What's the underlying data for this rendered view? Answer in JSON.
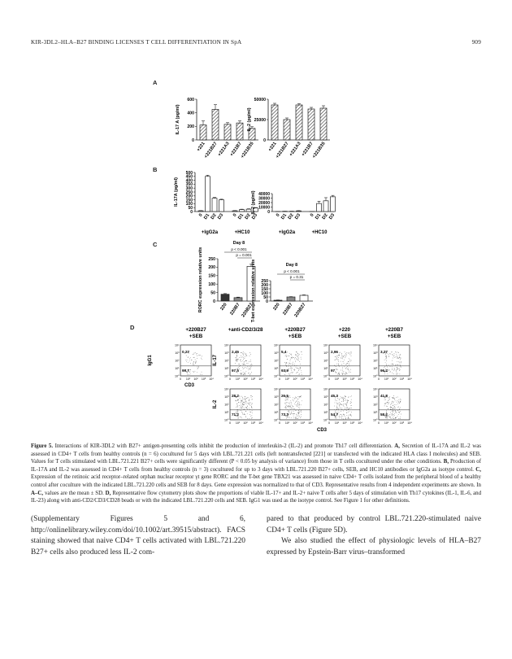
{
  "header": {
    "running_title": "KIR-3DL2–HLA–B27 BINDING LICENSES T CELL DIFFERENTIATION IN SpA",
    "page_number": "909"
  },
  "panels": {
    "A": "A",
    "B": "B",
    "C": "C",
    "D": "D"
  },
  "chart_data": [
    {
      "panel": "A",
      "type": "bar",
      "ylabel": "IL-17 A (pg/ml)",
      "yticks": [
        "0",
        "200",
        "400",
        "600"
      ],
      "ylim": [
        0,
        600
      ],
      "categories": [
        "+221",
        "+221B27",
        "+221A3",
        "+221B7",
        "+221B35"
      ],
      "values": [
        220,
        450,
        230,
        250,
        170
      ],
      "errors": [
        60,
        70,
        25,
        30,
        25
      ],
      "style": "hatched"
    },
    {
      "panel": "A",
      "type": "bar",
      "ylabel": "IL-2 (pg/ml)",
      "yticks": [
        "0",
        "25000",
        "50000"
      ],
      "ylim": [
        0,
        50000
      ],
      "categories": [
        "+221",
        "+221B27",
        "+221A3",
        "+221B7",
        "+221B35"
      ],
      "values": [
        43000,
        25000,
        43000,
        38000,
        39000
      ],
      "errors": [
        2000,
        2000,
        1500,
        2000,
        3000
      ],
      "style": "hatched"
    },
    {
      "panel": "B",
      "type": "bar",
      "ylabel": "IL-17A (pg/ml)",
      "yticks": [
        "0",
        "50",
        "100",
        "150",
        "200",
        "250",
        "300",
        "350",
        "400",
        "450",
        "500"
      ],
      "ylim": [
        0,
        500
      ],
      "categories": [
        "0",
        "D1",
        "D2",
        "D3",
        "0",
        "D1",
        "D2",
        "D3"
      ],
      "groups": [
        "+IgG2a",
        "+HC10"
      ],
      "values": [
        10,
        450,
        170,
        150,
        10,
        25,
        30,
        45
      ],
      "errors": [
        3,
        15,
        10,
        8,
        3,
        5,
        5,
        6
      ]
    },
    {
      "panel": "B",
      "type": "bar",
      "ylabel": "IL-2 (pg/ml)",
      "yticks": [
        "0",
        "10000",
        "20000",
        "30000",
        "40000"
      ],
      "ylim": [
        0,
        40000
      ],
      "categories": [
        "0",
        "D1",
        "D2",
        "D3",
        "0",
        "D1",
        "D2",
        "D3"
      ],
      "groups": [
        "+IgG2a",
        "+HC10"
      ],
      "values": [
        200,
        500,
        500,
        1500,
        200,
        18000,
        24000,
        33000
      ],
      "errors": [
        100,
        200,
        200,
        500,
        100,
        5000,
        7000,
        3000
      ]
    },
    {
      "panel": "C",
      "type": "bar",
      "title": "Day 8",
      "ylabel": "RORC expression relative units",
      "yticks": [
        "0",
        "50",
        "100",
        "150",
        "200",
        "250"
      ],
      "ylim": [
        0,
        250
      ],
      "categories": [
        "220",
        "220B7",
        "220B27"
      ],
      "values": [
        40,
        20,
        205
      ],
      "errors": [
        4,
        3,
        12
      ],
      "fills": [
        "#333333",
        "#888888",
        "#ffffff"
      ],
      "annotations": [
        "p < 0.001",
        "p = 0.001"
      ]
    },
    {
      "panel": "C",
      "type": "bar",
      "title": "Day 8",
      "ylabel": "T-bet expression relative units",
      "yticks": [
        "0",
        "50",
        "100",
        "150",
        "200",
        "250"
      ],
      "ylim": [
        0,
        250
      ],
      "categories": [
        "220",
        "220B7",
        "220B27"
      ],
      "values": [
        10,
        50,
        70
      ],
      "errors": [
        3,
        4,
        6
      ],
      "fills": [
        "#333333",
        "#888888",
        "#ffffff"
      ],
      "annotations": [
        "p < 0.001",
        "p = 0.31"
      ]
    }
  ],
  "flow": {
    "columns": [
      "+220B27\n+SEB",
      "+anti-CD2/3/28",
      "+220B27\n+SEB",
      "+220\n+SEB",
      "+220B7\n+SEB"
    ],
    "row_labels": [
      "IL-17",
      "IL-2"
    ],
    "isotype_label": "IgG1",
    "x_axis_label": "CD3",
    "bottom_label": "CD3",
    "yticks": [
      "10⁰",
      "10¹",
      "10²",
      "10³",
      "10⁴"
    ],
    "xticks": [
      "0",
      "10¹",
      "10²",
      "10³",
      "10⁴"
    ],
    "isotype_values": [
      "0,27",
      "99,7"
    ],
    "il17_values": [
      [
        "2,45",
        "97,5"
      ],
      [
        "5,4",
        "93,9"
      ],
      [
        "2,96",
        "97"
      ],
      [
        "3,27",
        "96,2"
      ]
    ],
    "il2_values": [
      [
        "28,2",
        "71,2"
      ],
      [
        "26,5",
        "73,3"
      ],
      [
        "45,3",
        "54,7"
      ],
      [
        "41,8",
        "58,2"
      ]
    ]
  },
  "caption": {
    "label": "Figure 5.",
    "title": "Interactions of KIR-3DL2 with B27+ antigen-presenting cells inhibit the production of interleukin-2 (IL-2) and promote Th17 cell differentiation.",
    "a_label": "A,",
    "a_text": "Secretion of IL-17A and IL-2 was assessed in CD4+ T cells from healthy controls (n = 6) cocultured for 5 days with LBL.721.221 cells (left nontransfected [221] or transfected with the indicated HLA class I molecules) and SEB. Values for T cells stimulated with LBL.721.221 B27+ cells were significantly different (P < 0.05 by analysis of variance) from those in T cells cocultured under the other conditions.",
    "b_label": "B,",
    "b_text": "Production of IL-17A and IL-2 was assessed in CD4+ T cells from healthy controls (n = 3) cocultured for up to 3 days with LBL.721.220 B27+ cells, SEB, and HC10 antibodies or IgG2a as isotype control.",
    "c_label": "C,",
    "c_text": "Expression of the retinoic acid receptor–related orphan nuclear receptor γt gene RORC and the T-bet gene TBX21 was assessed in naive CD4+ T cells isolated from the peripheral blood of a healthy control after coculture with the indicated LBL.721.220 cells and SEB for 8 days. Gene expression was normalized to that of CD3. Representative results from 4 independent experiments are shown. In",
    "ac_label": "A–C,",
    "ac_text": "values are the mean ± SD.",
    "d_label": "D,",
    "d_text": "Representative flow cytometry plots show the proportions of viable IL-17+ and IL-2+ naive T cells after 5 days of stimulation with Th17 cytokines (IL-1, IL-6, and IL-23) along with anti-CD2/CD3/CD28 beads or with the indicated LBL.721.220 cells and SEB. IgG1 was used as the isotype control. See Figure 1 for other definitions."
  },
  "body": {
    "left_col": "(Supplementary Figures 5 and 6, http://onlinelibrary.wiley.com/doi/10.1002/art.39515/abstract). FACS staining showed that naive CD4+ T cells activated with LBL.721.220 B27+ cells also produced less IL-2 com-",
    "right_col_1": "pared to that produced by control LBL.721.220-stimulated naive CD4+ T cells (Figure 5D).",
    "right_col_2": "We also studied the effect of physiologic levels of HLA–B27 expressed by Epstein-Barr virus–transformed"
  }
}
